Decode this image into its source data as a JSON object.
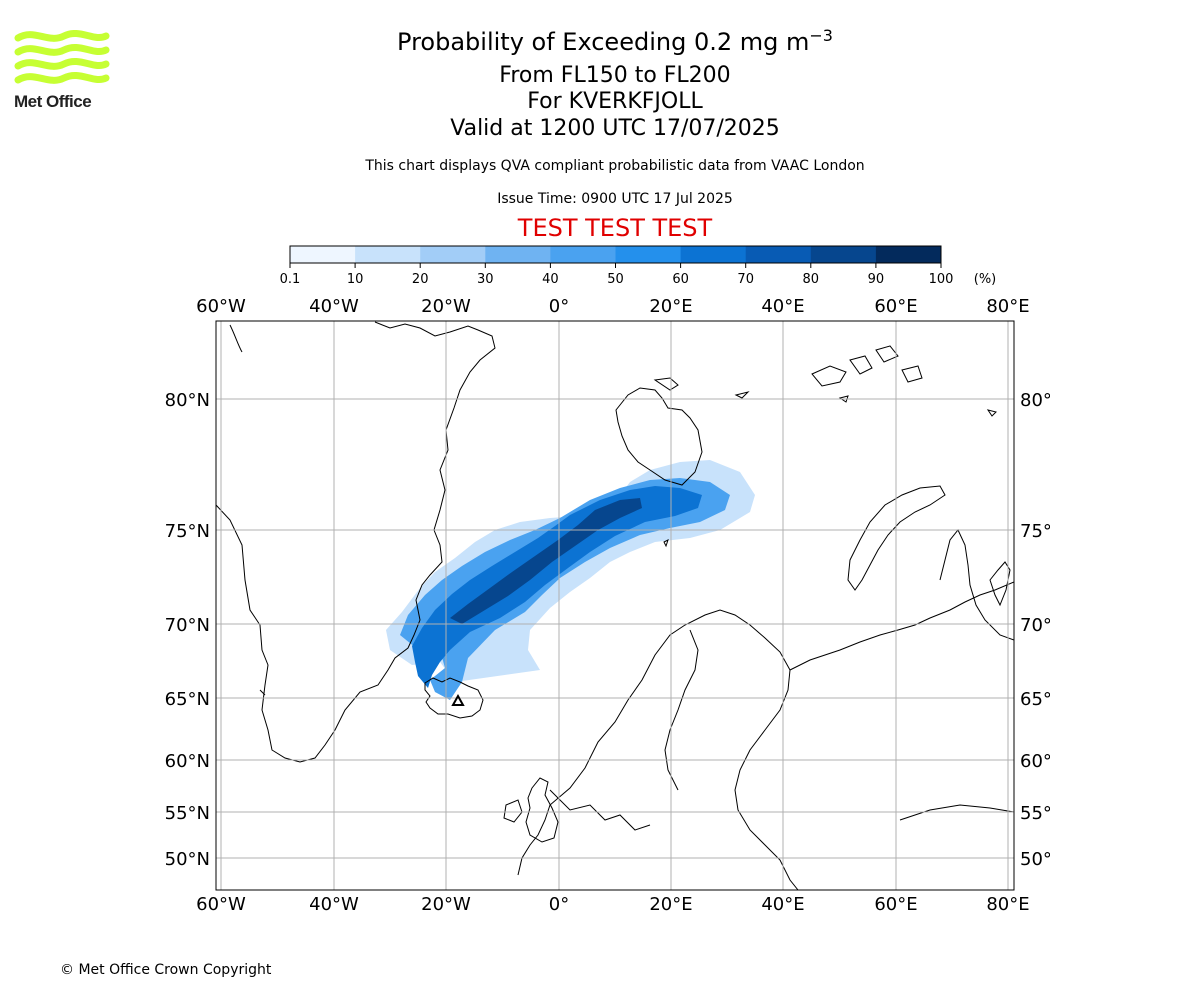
{
  "logo": {
    "text": "Met Office",
    "icon": "met-office-wave-logo",
    "color": "#c6ff33"
  },
  "title": {
    "line1_prefix": "Probability of Exceeding 0.2 mg m",
    "line1_exponent": "−3",
    "line2": "From FL150 to FL200",
    "line3": "For KVERKFJOLL",
    "line4": "Valid at 1200 UTC 17/07/2025"
  },
  "subtitle": "This chart displays QVA compliant probabilistic data from VAAC London",
  "issue_time": "Issue Time: 0900 UTC 17 Jul 2025",
  "test_banner": "TEST TEST TEST",
  "test_banner_color": "#e00000",
  "colorbar": {
    "ticks": [
      "0.1",
      "10",
      "20",
      "30",
      "40",
      "50",
      "60",
      "70",
      "80",
      "90",
      "100"
    ],
    "unit": "(%)",
    "colors": [
      "#eef6ff",
      "#c8e2fb",
      "#a2cdf7",
      "#6fb3f2",
      "#4aa2f0",
      "#2490ec",
      "#0c73d3",
      "#085bb4",
      "#06468e",
      "#032a5c"
    ]
  },
  "map": {
    "lon_labels": [
      "60°W",
      "40°W",
      "20°W",
      "0°",
      "20°E",
      "40°E",
      "60°E",
      "80°E"
    ],
    "lat_labels": [
      "80°N",
      "75°N",
      "70°N",
      "65°N",
      "60°N",
      "55°N",
      "50°N"
    ],
    "source_name": "KVERKFJOLL",
    "source_icon": "volcano-triangle-icon"
  },
  "copyright": "© Met Office Crown Copyright"
}
